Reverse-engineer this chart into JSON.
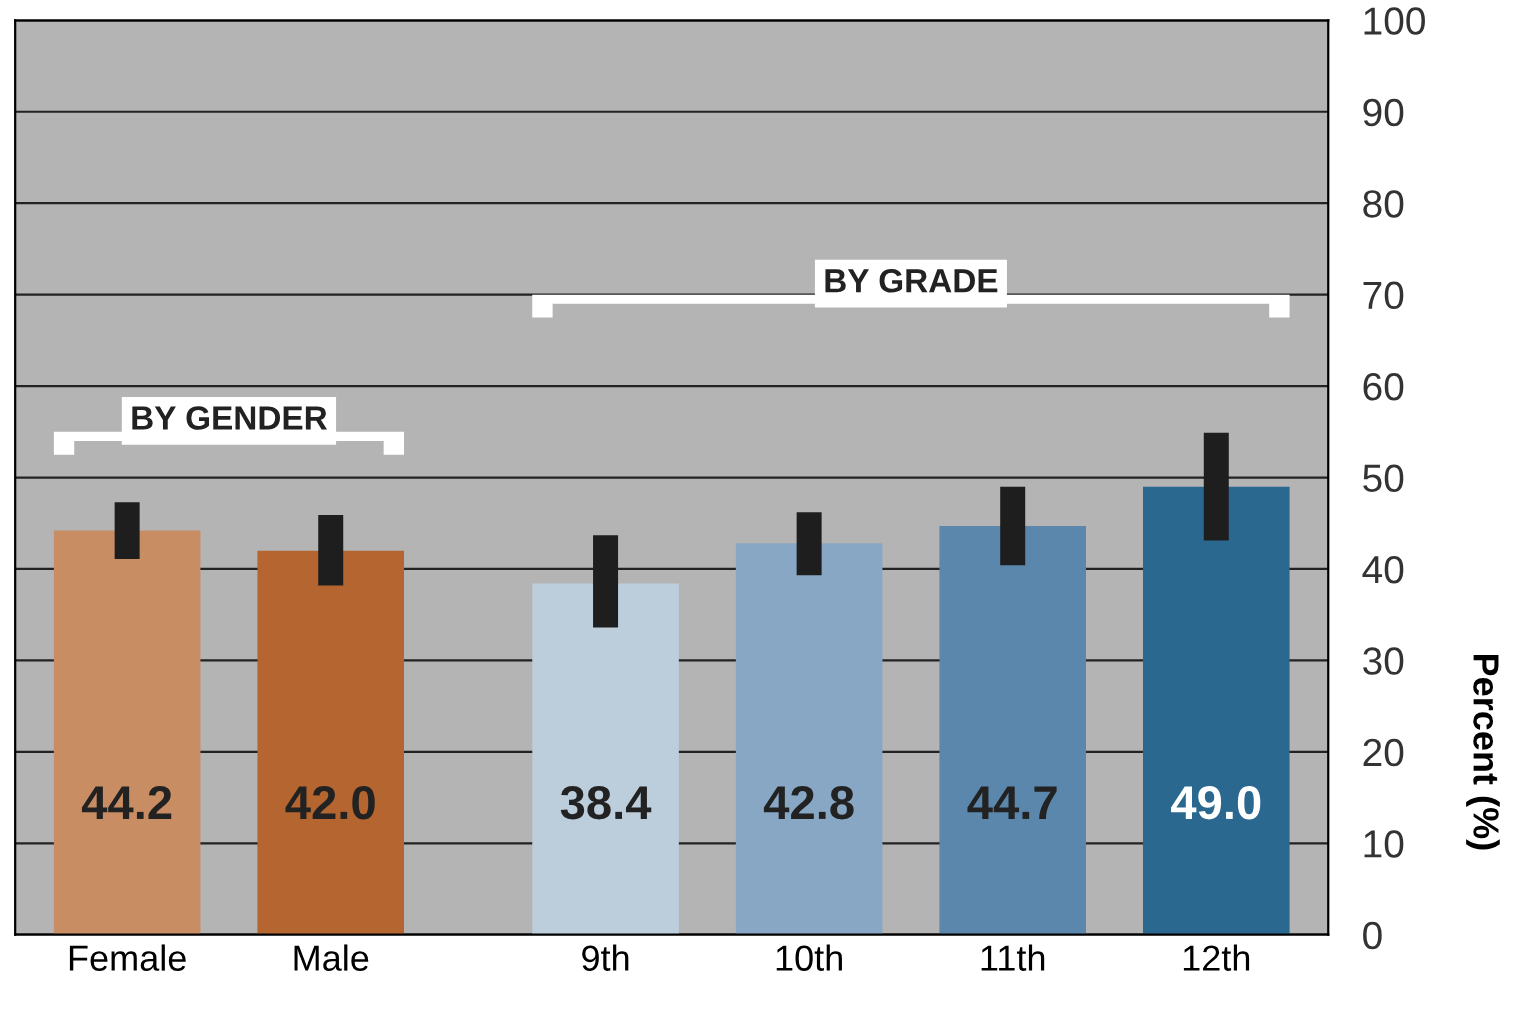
{
  "chart_data": {
    "type": "bar",
    "categories": [
      "Female",
      "Male",
      "9th",
      "10th",
      "11th",
      "12th"
    ],
    "values": [
      44.2,
      42.0,
      38.4,
      42.8,
      44.7,
      49.0
    ],
    "colors": [
      "#c98d63",
      "#b5652f",
      "#bccddc",
      "#88a7c4",
      "#5b87ad",
      "#2b6890"
    ],
    "errors": [
      [
        41.1,
        47.3
      ],
      [
        38.2,
        45.9
      ],
      [
        33.6,
        43.7
      ],
      [
        39.3,
        46.2
      ],
      [
        40.4,
        49.0
      ],
      [
        43.1,
        54.9
      ]
    ],
    "value_labels": [
      "44.2",
      "42.0",
      "38.4",
      "42.8",
      "44.7",
      "49.0"
    ],
    "ylabel": "Percent (%)",
    "ylim": [
      0,
      100
    ],
    "yticks": [
      0,
      10,
      20,
      30,
      40,
      50,
      60,
      70,
      80,
      90,
      100
    ],
    "grid": "y",
    "annotations": [
      "BY GENDER",
      "BY GRADE"
    ]
  }
}
